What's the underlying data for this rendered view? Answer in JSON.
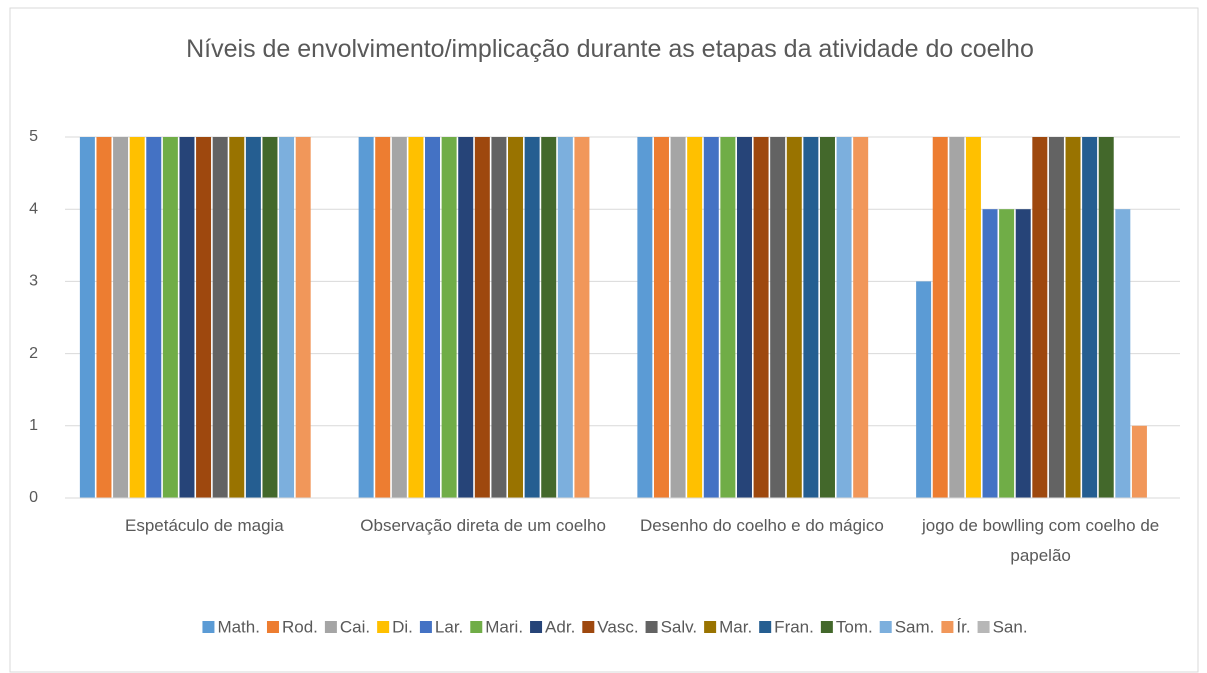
{
  "chart_data": {
    "type": "bar",
    "title": "Níveis de envolvimento/implicação durante as etapas da atividade do coelho",
    "categories": [
      "Espetáculo de magia",
      "Observação direta de um coelho",
      "Desenho do coelho e do mágico",
      "jogo de bowlling com coelho de papelão"
    ],
    "series": [
      {
        "name": "Math.",
        "color": "#5b9bd5",
        "values": [
          5,
          5,
          5,
          3
        ]
      },
      {
        "name": "Rod.",
        "color": "#ed7d31",
        "values": [
          5,
          5,
          5,
          5
        ]
      },
      {
        "name": "Cai.",
        "color": "#a5a5a5",
        "values": [
          5,
          5,
          5,
          5
        ]
      },
      {
        "name": "Di.",
        "color": "#ffc000",
        "values": [
          5,
          5,
          5,
          5
        ]
      },
      {
        "name": "Lar.",
        "color": "#4472c4",
        "values": [
          5,
          5,
          5,
          4
        ]
      },
      {
        "name": "Mari.",
        "color": "#70ad47",
        "values": [
          5,
          5,
          5,
          4
        ]
      },
      {
        "name": "Adr.",
        "color": "#264478",
        "values": [
          5,
          5,
          5,
          4
        ]
      },
      {
        "name": "Vasc.",
        "color": "#9e480e",
        "values": [
          5,
          5,
          5,
          5
        ]
      },
      {
        "name": "Salv.",
        "color": "#636363",
        "values": [
          5,
          5,
          5,
          5
        ]
      },
      {
        "name": "Mar.",
        "color": "#997300",
        "values": [
          5,
          5,
          5,
          5
        ]
      },
      {
        "name": "Fran.",
        "color": "#255e91",
        "values": [
          5,
          5,
          5,
          5
        ]
      },
      {
        "name": "Tom.",
        "color": "#43682b",
        "values": [
          5,
          5,
          5,
          5
        ]
      },
      {
        "name": "Sam.",
        "color": "#7cafdd",
        "values": [
          5,
          5,
          5,
          4
        ]
      },
      {
        "name": "Ír.",
        "color": "#f1975a",
        "values": [
          5,
          5,
          5,
          1
        ]
      },
      {
        "name": "San.",
        "color": "#b7b7b7",
        "values": [
          0,
          0,
          0,
          0
        ]
      }
    ],
    "ylim": [
      0,
      5
    ],
    "yticks": [
      0,
      1,
      2,
      3,
      4,
      5
    ],
    "grid": true,
    "legend": "bottom"
  }
}
